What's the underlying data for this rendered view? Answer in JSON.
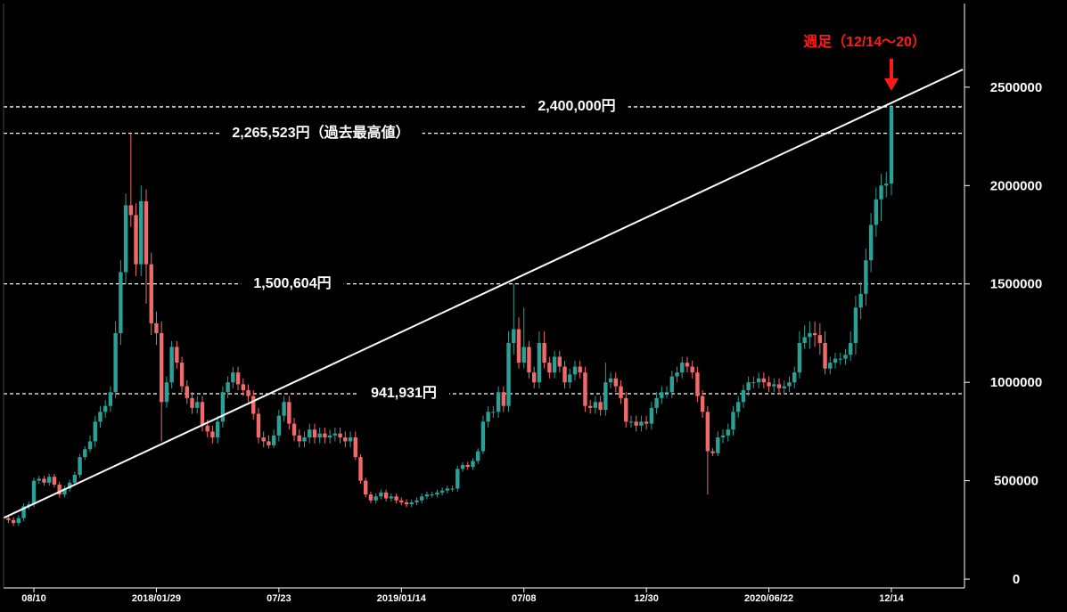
{
  "chart_data": {
    "type": "candlestick",
    "categories": [
      null,
      null,
      null,
      null,
      null,
      "08/10",
      null,
      null,
      null,
      null,
      null,
      null,
      null,
      null,
      null,
      null,
      null,
      null,
      null,
      null,
      null,
      null,
      null,
      null,
      null,
      null,
      null,
      null,
      null,
      "2018/01/29",
      null,
      null,
      null,
      null,
      null,
      null,
      null,
      null,
      null,
      null,
      null,
      null,
      null,
      null,
      null,
      null,
      null,
      null,
      null,
      null,
      null,
      null,
      null,
      "07/23",
      null,
      null,
      null,
      null,
      null,
      null,
      null,
      null,
      null,
      null,
      null,
      null,
      null,
      null,
      null,
      null,
      null,
      null,
      null,
      null,
      null,
      null,
      null,
      "2019/01/14",
      null,
      null,
      null,
      null,
      null,
      null,
      null,
      null,
      null,
      null,
      null,
      null,
      null,
      null,
      null,
      null,
      null,
      null,
      null,
      null,
      null,
      null,
      null,
      "07/08",
      null,
      null,
      null,
      null,
      null,
      null,
      null,
      null,
      null,
      null,
      null,
      null,
      null,
      null,
      null,
      null,
      null,
      null,
      null,
      null,
      null,
      null,
      null,
      "12/30",
      null,
      null,
      null,
      null,
      null,
      null,
      null,
      null,
      null,
      null,
      null,
      null,
      null,
      null,
      null,
      null,
      null,
      null,
      null,
      null,
      null,
      null,
      null,
      "2020/06/22",
      null,
      null,
      null,
      null,
      null,
      null,
      null,
      null,
      null,
      null,
      null,
      null,
      null,
      null,
      null,
      null,
      null,
      null,
      null,
      null,
      null,
      null,
      null,
      "12/14"
    ],
    "open": [
      310000,
      300000,
      285000,
      310000,
      370000,
      380000,
      500000,
      510000,
      490000,
      520000,
      480000,
      430000,
      460000,
      490000,
      530000,
      620000,
      660000,
      700000,
      800000,
      850000,
      880000,
      950000,
      1250000,
      1560000,
      1900000,
      1850000,
      1600000,
      1920000,
      1600000,
      1300000,
      1250000,
      900000,
      1000000,
      1180000,
      1100000,
      980000,
      920000,
      870000,
      900000,
      780000,
      750000,
      720000,
      800000,
      950000,
      1000000,
      1050000,
      990000,
      960000,
      930000,
      840000,
      720000,
      700000,
      680000,
      730000,
      830000,
      900000,
      790000,
      730000,
      700000,
      720000,
      760000,
      720000,
      740000,
      720000,
      730000,
      740000,
      720000,
      700000,
      720000,
      620000,
      500000,
      430000,
      400000,
      420000,
      440000,
      410000,
      420000,
      400000,
      390000,
      380000,
      390000,
      400000,
      420000,
      430000,
      430000,
      440000,
      450000,
      460000,
      460000,
      560000,
      580000,
      570000,
      600000,
      650000,
      800000,
      850000,
      850000,
      950000,
      880000,
      1200000,
      1270000,
      1100000,
      1180000,
      1050000,
      1000000,
      1200000,
      1100000,
      1050000,
      1130000,
      1080000,
      1000000,
      1040000,
      1080000,
      1050000,
      880000,
      870000,
      900000,
      860000,
      1000000,
      1020000,
      980000,
      920000,
      800000,
      800000,
      780000,
      800000,
      790000,
      870000,
      920000,
      950000,
      950000,
      1030000,
      1050000,
      1100000,
      1080000,
      1050000,
      930000,
      850000,
      650000,
      640000,
      720000,
      730000,
      760000,
      850000,
      900000,
      960000,
      1000000,
      1000000,
      1020000,
      1000000,
      980000,
      990000,
      970000,
      980000,
      1000000,
      1050000,
      1200000,
      1230000,
      1250000,
      1240000,
      1200000,
      1070000,
      1100000,
      1120000,
      1120000,
      1140000,
      1200000,
      1380000,
      1450000,
      1620000,
      1800000,
      1930000,
      2000000,
      2010000
    ],
    "high": [
      325000,
      315000,
      325000,
      385000,
      395000,
      515000,
      525000,
      525000,
      535000,
      535000,
      495000,
      475000,
      505000,
      545000,
      635000,
      675000,
      730000,
      830000,
      880000,
      910000,
      980000,
      1310000,
      1620000,
      1960000,
      2265523,
      1910000,
      2000000,
      1980000,
      1660000,
      1360000,
      1310000,
      1030000,
      1210000,
      1210000,
      1130000,
      1010000,
      950000,
      930000,
      930000,
      810000,
      780000,
      830000,
      980000,
      1030000,
      1080000,
      1080000,
      1020000,
      990000,
      960000,
      870000,
      750000,
      730000,
      760000,
      860000,
      930000,
      930000,
      820000,
      760000,
      750000,
      790000,
      790000,
      770000,
      770000,
      760000,
      770000,
      770000,
      750000,
      750000,
      750000,
      635000,
      515000,
      445000,
      435000,
      455000,
      455000,
      435000,
      435000,
      415000,
      405000,
      405000,
      415000,
      435000,
      445000,
      445000,
      455000,
      465000,
      475000,
      475000,
      575000,
      595000,
      595000,
      615000,
      665000,
      830000,
      880000,
      880000,
      980000,
      980000,
      1260000,
      1500604,
      1330000,
      1380000,
      1210000,
      1080000,
      1260000,
      1260000,
      1130000,
      1160000,
      1160000,
      1110000,
      1070000,
      1110000,
      1110000,
      1080000,
      910000,
      930000,
      930000,
      1100000,
      1050000,
      1050000,
      1010000,
      950000,
      830000,
      830000,
      830000,
      830000,
      900000,
      950000,
      980000,
      980000,
      1060000,
      1080000,
      1130000,
      1130000,
      1110000,
      1080000,
      960000,
      880000,
      665000,
      750000,
      760000,
      790000,
      880000,
      930000,
      990000,
      1030000,
      1030000,
      1050000,
      1050000,
      1030000,
      1020000,
      1020000,
      1010000,
      1030000,
      1080000,
      1260000,
      1290000,
      1310000,
      1310000,
      1300000,
      1260000,
      1130000,
      1150000,
      1150000,
      1170000,
      1260000,
      1440000,
      1510000,
      1680000,
      1860000,
      1990000,
      2060000,
      2070000,
      2410000
    ],
    "low": [
      285000,
      270000,
      270000,
      295000,
      355000,
      365000,
      485000,
      475000,
      475000,
      465000,
      415000,
      415000,
      445000,
      475000,
      515000,
      605000,
      645000,
      670000,
      770000,
      820000,
      850000,
      920000,
      1190000,
      1500000,
      1790000,
      1540000,
      1540000,
      1400000,
      1240000,
      1190000,
      700000,
      870000,
      970000,
      1070000,
      950000,
      890000,
      840000,
      840000,
      750000,
      720000,
      690000,
      690000,
      770000,
      920000,
      970000,
      960000,
      930000,
      900000,
      810000,
      690000,
      670000,
      665000,
      665000,
      700000,
      800000,
      760000,
      700000,
      670000,
      670000,
      690000,
      690000,
      690000,
      690000,
      690000,
      700000,
      690000,
      670000,
      670000,
      605000,
      485000,
      415000,
      385000,
      385000,
      405000,
      395000,
      395000,
      385000,
      375000,
      365000,
      365000,
      375000,
      385000,
      405000,
      415000,
      415000,
      425000,
      435000,
      445000,
      445000,
      545000,
      555000,
      555000,
      585000,
      635000,
      770000,
      820000,
      820000,
      850000,
      850000,
      1140000,
      1070000,
      1070000,
      1020000,
      970000,
      970000,
      1070000,
      1020000,
      1020000,
      1050000,
      970000,
      970000,
      1010000,
      1020000,
      850000,
      840000,
      840000,
      830000,
      830000,
      970000,
      950000,
      890000,
      770000,
      770000,
      750000,
      750000,
      760000,
      760000,
      840000,
      890000,
      920000,
      920000,
      1000000,
      1020000,
      1050000,
      1020000,
      900000,
      820000,
      430000,
      625000,
      625000,
      690000,
      700000,
      730000,
      820000,
      870000,
      930000,
      970000,
      970000,
      970000,
      950000,
      950000,
      940000,
      940000,
      950000,
      970000,
      1020000,
      1170000,
      1170000,
      1180000,
      1140000,
      1040000,
      1040000,
      1070000,
      1090000,
      1090000,
      1110000,
      1140000,
      1320000,
      1390000,
      1560000,
      1740000,
      1820000,
      1940000,
      1950000
    ],
    "close": [
      300000,
      285000,
      310000,
      370000,
      380000,
      500000,
      510000,
      490000,
      520000,
      480000,
      430000,
      460000,
      490000,
      530000,
      620000,
      660000,
      700000,
      800000,
      850000,
      880000,
      950000,
      1250000,
      1560000,
      1900000,
      1850000,
      1600000,
      1920000,
      1600000,
      1300000,
      1250000,
      900000,
      1000000,
      1180000,
      1100000,
      980000,
      920000,
      870000,
      900000,
      780000,
      750000,
      720000,
      800000,
      950000,
      1000000,
      1050000,
      990000,
      960000,
      930000,
      840000,
      720000,
      700000,
      680000,
      730000,
      830000,
      900000,
      790000,
      730000,
      700000,
      720000,
      760000,
      720000,
      740000,
      720000,
      730000,
      740000,
      720000,
      700000,
      720000,
      620000,
      500000,
      430000,
      400000,
      420000,
      440000,
      410000,
      420000,
      400000,
      390000,
      380000,
      390000,
      400000,
      420000,
      430000,
      430000,
      440000,
      450000,
      460000,
      460000,
      560000,
      580000,
      570000,
      600000,
      650000,
      800000,
      850000,
      850000,
      950000,
      880000,
      1200000,
      1270000,
      1100000,
      1180000,
      1050000,
      1000000,
      1200000,
      1100000,
      1050000,
      1130000,
      1080000,
      1000000,
      1040000,
      1080000,
      1050000,
      880000,
      870000,
      900000,
      860000,
      1000000,
      1020000,
      980000,
      920000,
      800000,
      800000,
      780000,
      800000,
      790000,
      870000,
      920000,
      950000,
      950000,
      1030000,
      1050000,
      1100000,
      1080000,
      1050000,
      930000,
      850000,
      650000,
      640000,
      720000,
      730000,
      760000,
      850000,
      900000,
      960000,
      1000000,
      1000000,
      1020000,
      1000000,
      980000,
      990000,
      970000,
      980000,
      1000000,
      1050000,
      1200000,
      1230000,
      1250000,
      1240000,
      1200000,
      1070000,
      1100000,
      1120000,
      1120000,
      1140000,
      1200000,
      1380000,
      1450000,
      1620000,
      1800000,
      1930000,
      2000000,
      2010000,
      2400000
    ],
    "up_color": "#2aa197",
    "down_color": "#f06a6a",
    "ylim": [
      -45000,
      2925000
    ],
    "yticks": [
      0,
      500000,
      1000000,
      1500000,
      2000000,
      2500000
    ],
    "hlines": [
      {
        "value": 2400000,
        "label": "2,400,000円"
      },
      {
        "value": 2265523,
        "label": "2,265,523円（過去最高値）"
      },
      {
        "value": 1500604,
        "label": "1,500,604円"
      },
      {
        "value": 941931,
        "label": "941,931円"
      }
    ],
    "trendline": {
      "x": [
        -1,
        187
      ],
      "values": [
        310000,
        2590000
      ]
    },
    "annotation": "週足（12/14〜20）",
    "annotation_color": "#ff1a1a"
  }
}
